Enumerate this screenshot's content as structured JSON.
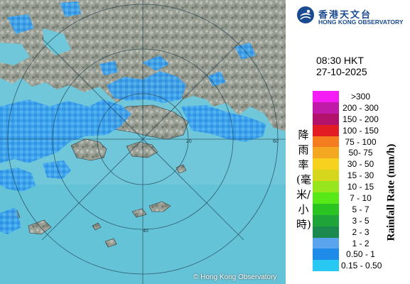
{
  "map": {
    "range_rings": [
      {
        "label": "60"
      },
      {
        "label": "40"
      },
      {
        "label": "20"
      }
    ],
    "copyright": "© Hong Kong Observatory"
  },
  "header": {
    "logo_zh": "香港天文台",
    "logo_en": "HONG KONG OBSERVATORY"
  },
  "timestamp": {
    "time": "08:30 HKT",
    "date": "27-10-2025"
  },
  "legend": {
    "title_zh": "降雨率(毫米/小時)",
    "title_en": "Rainfall Rate (mm/h)",
    "items": [
      {
        "label": ">300",
        "color": "#f41ef4"
      },
      {
        "label": "200 - 300",
        "color": "#c01aa9"
      },
      {
        "label": "150 - 200",
        "color": "#b3126b"
      },
      {
        "label": "100 - 150",
        "color": "#e31b23"
      },
      {
        "label": "75 - 100",
        "color": "#f47d20"
      },
      {
        "label": "50- 75",
        "color": "#f4a822"
      },
      {
        "label": "30 - 50",
        "color": "#f6d21e"
      },
      {
        "label": "15 - 30",
        "color": "#d6d61d"
      },
      {
        "label": "10 - 15",
        "color": "#97e51c"
      },
      {
        "label": "7 - 10",
        "color": "#59e817"
      },
      {
        "label": "5 - 7",
        "color": "#29c421"
      },
      {
        "label": "3 - 5",
        "color": "#1fa43a"
      },
      {
        "label": "2 - 3",
        "color": "#1c8a4e"
      },
      {
        "label": "1 - 2",
        "color": "#5aa4ee"
      },
      {
        "label": "0.50 - 1",
        "color": "#1e8be8"
      },
      {
        "label": "0.15 - 0.50",
        "color": "#29c8f2"
      }
    ]
  }
}
